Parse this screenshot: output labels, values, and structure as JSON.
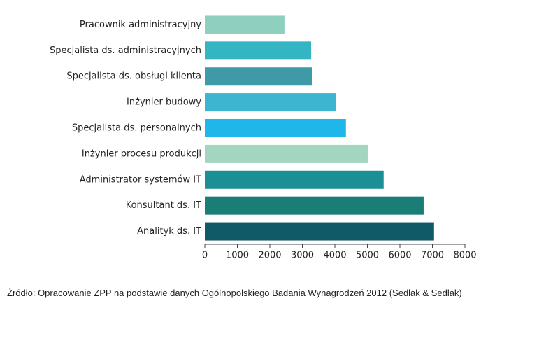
{
  "chart_data": {
    "type": "bar",
    "orientation": "horizontal",
    "categories": [
      "Pracownik administracyjny",
      "Specjalista ds. administracyjnych",
      "Specjalista ds. obsługi klienta",
      "Inżynier budowy",
      "Specjalista ds. personalnych",
      "Inżynier procesu produkcji",
      "Administrator systemów IT",
      "Konsultant ds. IT",
      "Analityk ds. IT"
    ],
    "values": [
      2450,
      3270,
      3310,
      4040,
      4340,
      5010,
      5500,
      6730,
      7050
    ],
    "colors": [
      "#8fcfc0",
      "#33b5c4",
      "#3e9aa6",
      "#3db5d0",
      "#1fb6ea",
      "#a3d6c1",
      "#1a9096",
      "#1a7d76",
      "#0f5a66"
    ],
    "xlim": [
      0,
      8000
    ],
    "xticks": [
      0,
      1000,
      2000,
      3000,
      4000,
      5000,
      6000,
      7000,
      8000
    ],
    "grid": false,
    "source": "Źródło: Opracowanie ZPP na podstawie danych Ogólnopolskiego Badania Wynagrodzeń 2012 (Sedlak & Sedlak)"
  }
}
